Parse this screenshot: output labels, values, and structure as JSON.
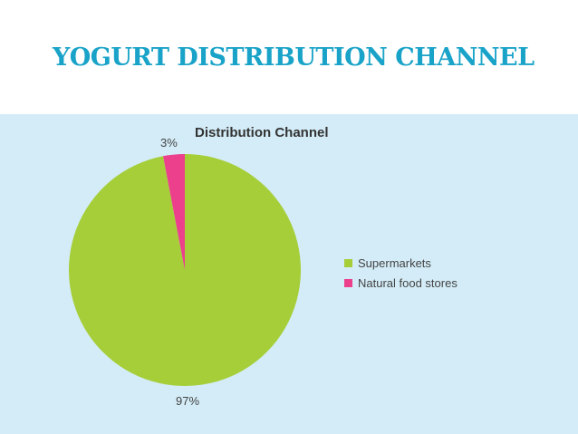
{
  "slide": {
    "title": "YOGURT DISTRIBUTION CHANNEL",
    "title_color": "#1aa3c8",
    "header_bg": "#ffffff",
    "chart_bg": "#d3ecf7"
  },
  "chart_data": {
    "type": "pie",
    "title": "Distribution Channel",
    "categories": [
      "Supermarkets",
      "Natural food stores"
    ],
    "values": [
      97,
      3
    ],
    "data_labels": [
      "97%",
      "3%"
    ],
    "colors": [
      "#a6ce39",
      "#ec3f8c"
    ],
    "legend_position": "right"
  }
}
